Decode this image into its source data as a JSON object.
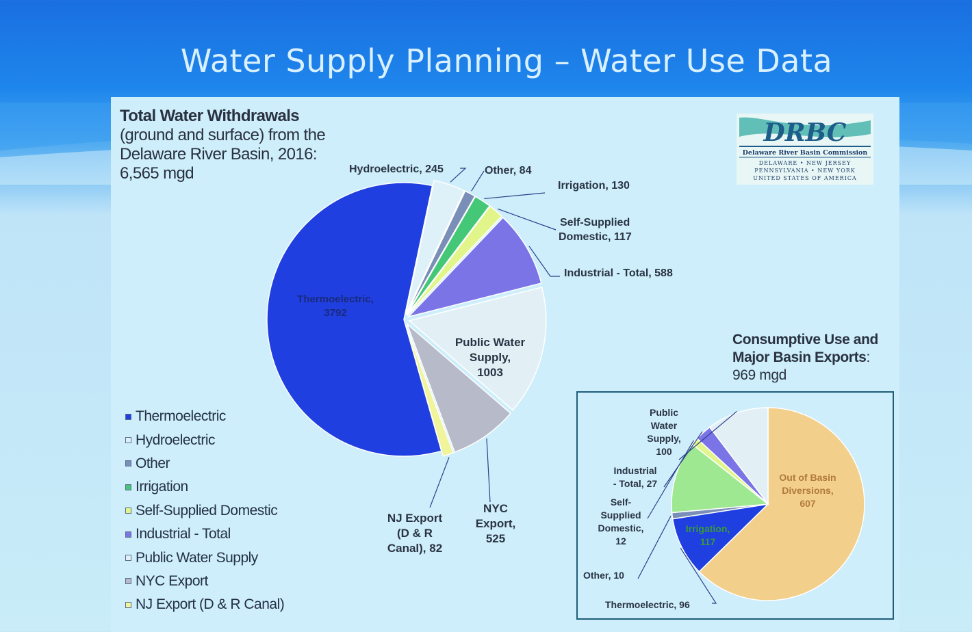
{
  "slide": {
    "title": "Water Supply Planning – Water Use Data"
  },
  "logo": {
    "mark": "DRBC",
    "name": "Delaware River Basin Commission",
    "states_line1": "DELAWARE • NEW JERSEY",
    "states_line2": "PENNSYLVANIA • NEW YORK",
    "states_line3": "UNITED STATES OF AMERICA"
  },
  "colors": {
    "thermoelectric": "#1f3fe0",
    "hydroelectric": "#dff1f8",
    "other": "#7a8fb8",
    "irrigation": "#44c878",
    "self_supplied": "#e2f58a",
    "industrial": "#7a74e6",
    "public_water": "#e2f0f6",
    "nyc_export": "#b7bac8",
    "nj_export": "#f0f49a",
    "out_of_basin": "#f3cf8c",
    "inset_irrigation": "#9ee892"
  },
  "chart_data": [
    {
      "type": "pie",
      "title_line1": "Total Water Withdrawals",
      "title_line2": "(ground and surface) from the",
      "title_line3": "Delaware River Basin, 2016",
      "title_colon": ":",
      "total": "6,565 mgd",
      "exploded": true,
      "slices": [
        {
          "key": "thermoelectric",
          "name": "Thermoelectric",
          "value": 3792,
          "label_line1": "Thermoelectric,",
          "label_line2": "3792"
        },
        {
          "key": "hydroelectric",
          "name": "Hydroelectric",
          "value": 245,
          "label": "Hydroelectric, 245"
        },
        {
          "key": "other",
          "name": "Other",
          "value": 84,
          "label": "Other, 84"
        },
        {
          "key": "irrigation",
          "name": "Irrigation",
          "value": 130,
          "label": "Irrigation, 130"
        },
        {
          "key": "self_supplied",
          "name": "Self-Supplied Domestic",
          "value": 117,
          "label_line1": "Self-Supplied",
          "label_line2": "Domestic, 117"
        },
        {
          "key": "industrial",
          "name": "Industrial - Total",
          "value": 588,
          "label": "Industrial - Total, 588"
        },
        {
          "key": "public_water",
          "name": "Public Water Supply",
          "value": 1003,
          "label_line1": "Public Water",
          "label_line2": "Supply,",
          "label_line3": "1003"
        },
        {
          "key": "nyc_export",
          "name": "NYC Export",
          "value": 525,
          "label_line1": "NYC",
          "label_line2": "Export,",
          "label_line3": "525"
        },
        {
          "key": "nj_export",
          "name": "NJ Export (D & R Canal)",
          "value": 82,
          "label_line1": "NJ Export",
          "label_line2": "(D & R",
          "label_line3": "Canal), 82"
        }
      ],
      "legend_position": "bottom-left"
    },
    {
      "type": "pie",
      "title_line1": "Consumptive Use and",
      "title_line2": "Major Basin Exports",
      "title_colon": ":",
      "total": "969 mgd",
      "slices": [
        {
          "key": "out_of_basin",
          "name": "Out of Basin Diversions",
          "value": 607,
          "label_line1": "Out of Basin",
          "label_line2": "Diversions,",
          "label_line3": "607"
        },
        {
          "key": "thermoelectric",
          "name": "Thermoelectric",
          "value": 96,
          "label": "Thermoelectric, 96"
        },
        {
          "key": "other",
          "name": "Other",
          "value": 10,
          "label": "Other, 10"
        },
        {
          "key": "inset_irrigation",
          "name": "Irrigation",
          "value": 117,
          "label_line1": "Irrigation,",
          "label_line2": "117"
        },
        {
          "key": "self_supplied",
          "name": "Self-Supplied Domestic",
          "value": 12,
          "label_line1": "Self-",
          "label_line2": "Supplied",
          "label_line3": "Domestic,",
          "label_line4": "12"
        },
        {
          "key": "industrial",
          "name": "Industrial - Total",
          "value": 27,
          "label_line1": "Industrial",
          "label_line2": "- Total, 27"
        },
        {
          "key": "public_water",
          "name": "Public Water Supply",
          "value": 100,
          "label_line1": "Public",
          "label_line2": "Water",
          "label_line3": "Supply,",
          "label_line4": "100"
        }
      ]
    }
  ]
}
